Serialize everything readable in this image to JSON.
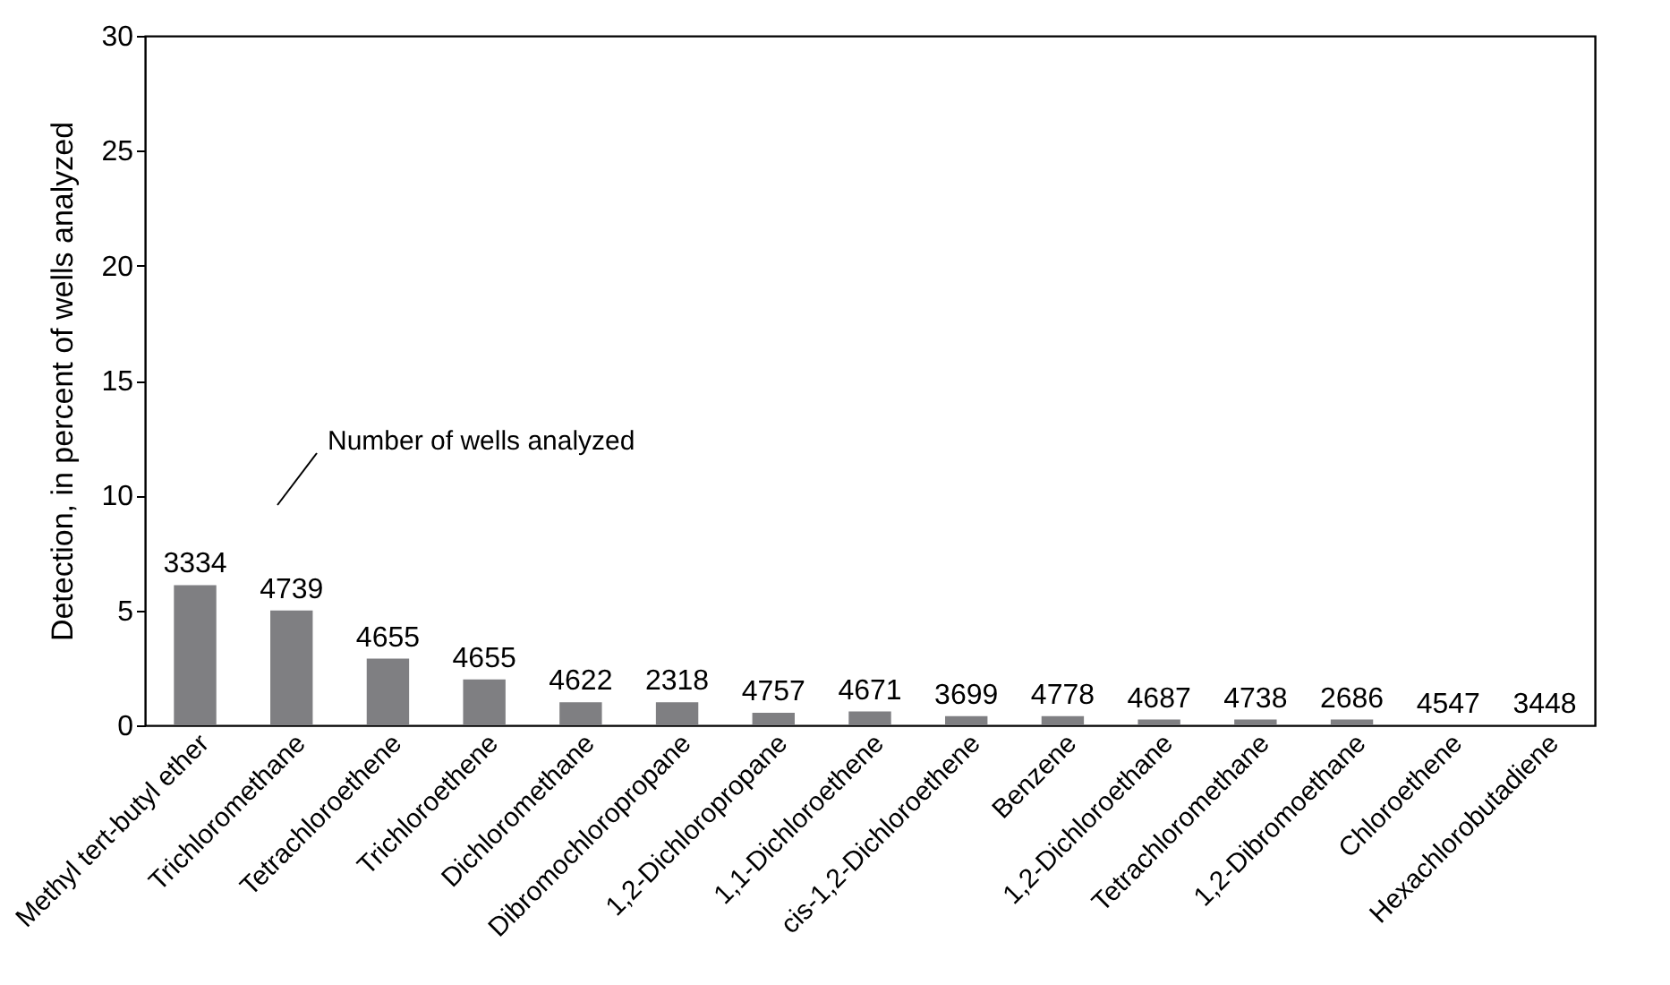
{
  "chart_data": {
    "type": "bar",
    "ylabel": "Detection, in percent of wells analyzed",
    "categories": [
      "Methyl tert-butyl ether",
      "Trichloromethane",
      "Tetrachloroethene",
      "Trichloroethene",
      "Dichloromethane",
      "Dibromochloropropane",
      "1,2-Dichloropropane",
      "1,1-Dichloroethene",
      "cis-1,2-Dichloroethene",
      "Benzene",
      "1,2-Dichloroethane",
      "Tetrachloromethane",
      "1,2-Dibromoethane",
      "Chloroethene",
      "Hexachlorobutadiene"
    ],
    "values": [
      6.1,
      5.0,
      2.9,
      2.0,
      1.0,
      1.0,
      0.55,
      0.6,
      0.4,
      0.4,
      0.25,
      0.25,
      0.25,
      0,
      0
    ],
    "color": "#7f7f82",
    "ylim": [
      0,
      30
    ],
    "yticks": [
      0,
      5,
      10,
      15,
      20,
      25,
      30
    ],
    "grid": false,
    "annotations": [
      "Number of wells analyzed",
      {
        "text": "3334",
        "x": "Methyl tert-butyl ether",
        "y": 6.1
      },
      {
        "text": "4739",
        "x": "Trichloromethane",
        "y": 5.0
      },
      {
        "text": "4655",
        "x": "Tetrachloroethene",
        "y": 2.9
      },
      {
        "text": "4655",
        "x": "Trichloroethene",
        "y": 2.0
      },
      {
        "text": "4622",
        "x": "Dichloromethane",
        "y": 1.0
      },
      {
        "text": "2318",
        "x": "Dibromochloropropane",
        "y": 1.0
      },
      {
        "text": "4757",
        "x": "1,2-Dichloropropane",
        "y": 0.55
      },
      {
        "text": "4671",
        "x": "1,1-Dichloroethene",
        "y": 0.6
      },
      {
        "text": "3699",
        "x": "cis-1,2-Dichloroethene",
        "y": 0.4
      },
      {
        "text": "4778",
        "x": "Benzene",
        "y": 0.4
      },
      {
        "text": "4687",
        "x": "1,2-Dichloroethane",
        "y": 0.25
      },
      {
        "text": "4738",
        "x": "Tetrachloromethane",
        "y": 0.25
      },
      {
        "text": "2686",
        "x": "1,2-Dibromoethane",
        "y": 0.25
      },
      {
        "text": "4547",
        "x": "Chloroethene",
        "y": 0
      },
      {
        "text": "3448",
        "x": "Hexachlorobutadiene",
        "y": 0
      }
    ]
  }
}
